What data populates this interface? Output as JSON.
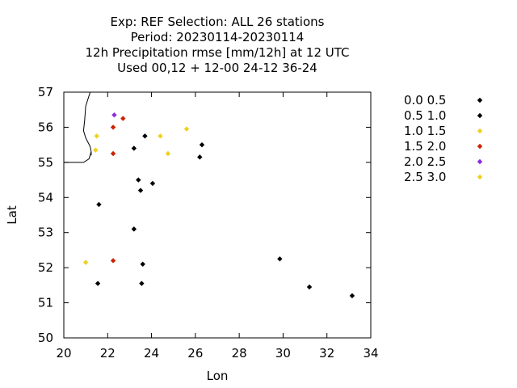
{
  "chart_data": {
    "type": "scatter",
    "title_lines": [
      "Exp: REF   Selection: ALL     26 stations",
      "Period: 20230114-20230114",
      "12h Precipitation rmse [mm/12h] at  12 UTC",
      "Used  00,12  + 12-00 24-12 36-24"
    ],
    "xlabel": "Lon",
    "ylabel": "Lat",
    "xlim": [
      20,
      34
    ],
    "ylim": [
      50,
      57
    ],
    "xticks": [
      "20",
      "22",
      "24",
      "26",
      "28",
      "30",
      "32",
      "34"
    ],
    "yticks": [
      "50",
      "51",
      "52",
      "53",
      "54",
      "55",
      "56",
      "57"
    ],
    "grid": false,
    "legend_position": "right",
    "series": [
      {
        "name": "0.0 0.5",
        "color": "#000000",
        "points": [
          [
            23.2,
            55.4
          ],
          [
            23.7,
            55.75
          ],
          [
            26.3,
            55.5
          ],
          [
            26.2,
            55.15
          ],
          [
            23.4,
            54.5
          ],
          [
            23.5,
            54.2
          ],
          [
            24.05,
            54.4
          ],
          [
            21.6,
            53.8
          ],
          [
            23.2,
            53.1
          ],
          [
            23.6,
            52.1
          ],
          [
            21.55,
            51.55
          ],
          [
            23.55,
            51.55
          ],
          [
            29.85,
            52.25
          ],
          [
            31.2,
            51.45
          ],
          [
            33.15,
            51.2
          ]
        ]
      },
      {
        "name": "0.5 1.0",
        "color": "#000000",
        "points": []
      },
      {
        "name": "1.0 1.5",
        "color": "#f0d020",
        "points": [
          [
            21.5,
            55.75
          ],
          [
            21.45,
            55.35
          ],
          [
            24.4,
            55.75
          ],
          [
            25.6,
            55.95
          ],
          [
            24.75,
            55.25
          ],
          [
            21.0,
            52.15
          ]
        ]
      },
      {
        "name": "1.5 2.0",
        "color": "#cc2200",
        "points": [
          [
            22.25,
            56.0
          ],
          [
            22.7,
            56.25
          ],
          [
            22.25,
            55.25
          ],
          [
            22.25,
            52.2
          ]
        ]
      },
      {
        "name": "2.0 2.5",
        "color": "#8a2be2",
        "points": [
          [
            22.3,
            56.35
          ]
        ]
      },
      {
        "name": "2.5 3.0",
        "color": "#f0d020",
        "points": []
      }
    ],
    "coastline": [
      [
        21.2,
        57.0
      ],
      [
        21.0,
        56.6
      ],
      [
        20.95,
        56.2
      ],
      [
        20.9,
        55.9
      ],
      [
        21.0,
        55.7
      ],
      [
        21.2,
        55.45
      ],
      [
        21.25,
        55.3
      ],
      [
        21.15,
        55.1
      ],
      [
        20.9,
        55.0
      ],
      [
        20.55,
        55.0
      ],
      [
        20.2,
        55.0
      ],
      [
        20.0,
        55.0
      ]
    ],
    "coastline_spit": [
      [
        21.25,
        55.2
      ],
      [
        21.25,
        55.3
      ]
    ]
  }
}
